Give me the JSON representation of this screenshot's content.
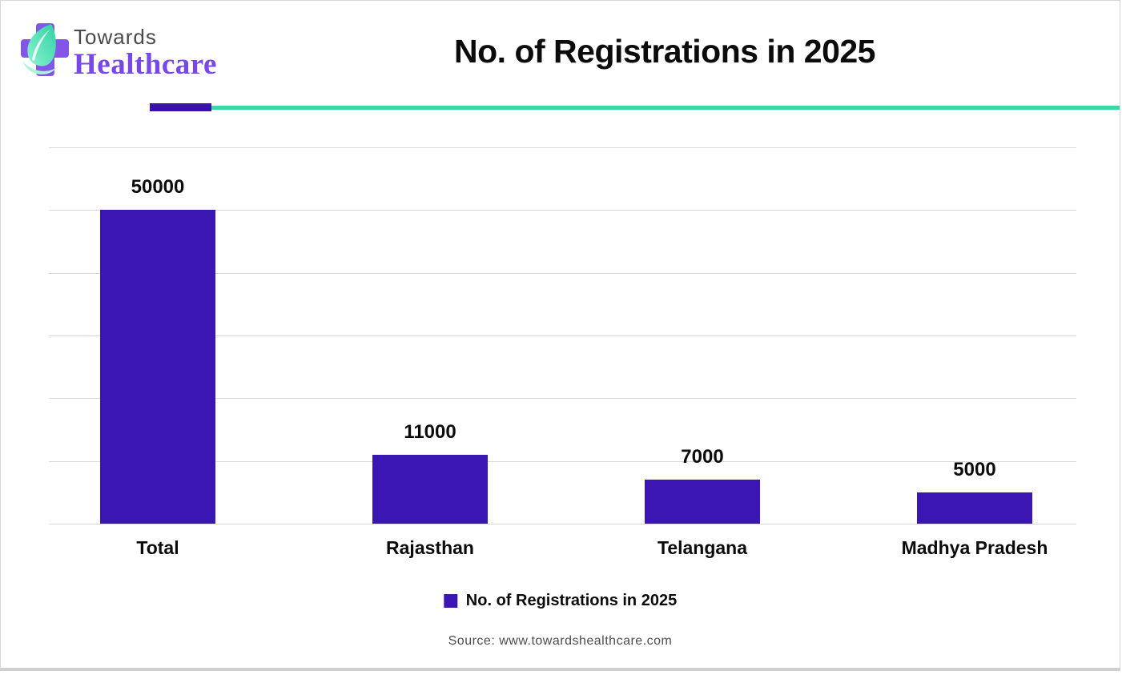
{
  "header": {
    "logo": {
      "line1": "Towards",
      "line2": "Healthcare"
    },
    "title": "No. of Registrations in 2025"
  },
  "chart_data": {
    "type": "bar",
    "title": "No. of Registrations in 2025",
    "categories": [
      "Total",
      "Rajasthan",
      "Telangana",
      "Madhya Pradesh"
    ],
    "values": [
      50000,
      11000,
      7000,
      5000
    ],
    "data_labels": [
      "50000",
      "11000",
      "7000",
      "5000"
    ],
    "series_name": "No. of Registrations in 2025",
    "xlabel": "",
    "ylabel": "",
    "ylim": [
      0,
      60000
    ],
    "gridline_step": 10000,
    "grid": true,
    "y_tick_labels_visible": false,
    "legend_position": "bottom",
    "bar_color": "#3b16b3"
  },
  "legend": {
    "label": "No. of Registrations in 2025"
  },
  "footer": {
    "source": "Source: www.towardshealthcare.com"
  },
  "colors": {
    "bar": "#3b16b3",
    "accent_purple": "#3a10ae",
    "accent_teal": "#35dba2",
    "gridline": "#d9d9d9",
    "logo_cross_purple": "#8456e8",
    "logo_leaf_teal": "#3fe0ab",
    "logo_text_gray": "#474a50",
    "logo_text_purple": "#7747e8",
    "title_black": "#0b0b0b",
    "source_gray": "#4d4d4d"
  }
}
